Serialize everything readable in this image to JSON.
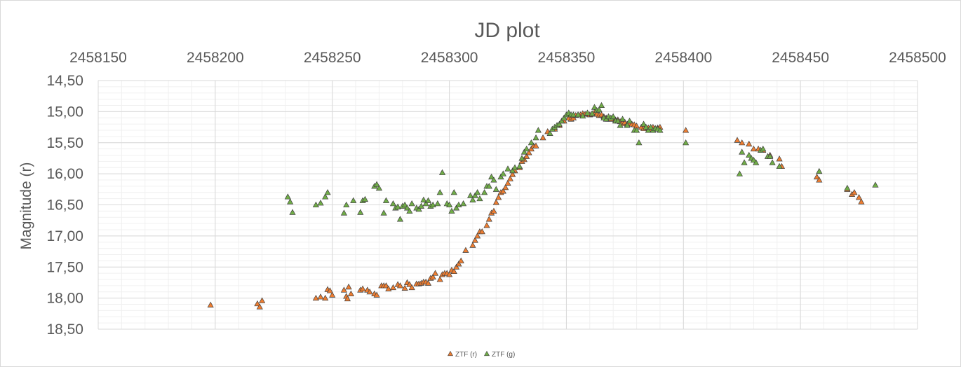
{
  "chart_data": {
    "type": "scatter",
    "title": "JD plot",
    "xlabel": "",
    "ylabel": "Magnitude (r)",
    "x_axis_position": "top",
    "y_reversed": true,
    "xlim": [
      2458150,
      2458500
    ],
    "ylim": [
      14.5,
      18.5
    ],
    "x_ticks": [
      "2458150",
      "2458200",
      "2458250",
      "2458300",
      "2458350",
      "2458400",
      "2458450",
      "2458500"
    ],
    "y_ticks": [
      "14,50",
      "15,00",
      "15,50",
      "16,00",
      "16,50",
      "17,00",
      "17,50",
      "18,00",
      "18,50"
    ],
    "x_tick_values": [
      2458150,
      2458200,
      2458250,
      2458300,
      2458350,
      2458400,
      2458450,
      2458500
    ],
    "y_tick_values": [
      14.5,
      15.0,
      15.5,
      16.0,
      16.5,
      17.0,
      17.5,
      18.0,
      18.5
    ],
    "grid": true,
    "legend_position": "bottom",
    "series": [
      {
        "name": "ZTF (r)",
        "color": "#ed7d31",
        "marker": "triangle",
        "points": [
          [
            2458198,
            18.11
          ],
          [
            2458218,
            18.09
          ],
          [
            2458219,
            18.14
          ],
          [
            2458220,
            18.04
          ],
          [
            2458243,
            18.0
          ],
          [
            2458245,
            17.98
          ],
          [
            2458247,
            18.0
          ],
          [
            2458248,
            17.86
          ],
          [
            2458249,
            17.88
          ],
          [
            2458250,
            17.95
          ],
          [
            2458255,
            17.87
          ],
          [
            2458256,
            17.97
          ],
          [
            2458256.5,
            18.01
          ],
          [
            2458257,
            17.82
          ],
          [
            2458258,
            17.93
          ],
          [
            2458262,
            17.87
          ],
          [
            2458263,
            17.85
          ],
          [
            2458265,
            17.87
          ],
          [
            2458266,
            17.9
          ],
          [
            2458268,
            17.93
          ],
          [
            2458269,
            17.95
          ],
          [
            2458271,
            17.8
          ],
          [
            2458272,
            17.8
          ],
          [
            2458273,
            17.8
          ],
          [
            2458274,
            17.85
          ],
          [
            2458276,
            17.83
          ],
          [
            2458278,
            17.78
          ],
          [
            2458279,
            17.8
          ],
          [
            2458281,
            17.84
          ],
          [
            2458282,
            17.75
          ],
          [
            2458283,
            17.78
          ],
          [
            2458284,
            17.83
          ],
          [
            2458286,
            17.77
          ],
          [
            2458287,
            17.77
          ],
          [
            2458288,
            17.76
          ],
          [
            2458289,
            17.74
          ],
          [
            2458290,
            17.74
          ],
          [
            2458291,
            17.76
          ],
          [
            2458292,
            17.68
          ],
          [
            2458293,
            17.66
          ],
          [
            2458294,
            17.6
          ],
          [
            2458296,
            17.7
          ],
          [
            2458297,
            17.62
          ],
          [
            2458298,
            17.6
          ],
          [
            2458299,
            17.6
          ],
          [
            2458300,
            17.62
          ],
          [
            2458301,
            17.55
          ],
          [
            2458302,
            17.57
          ],
          [
            2458303,
            17.5
          ],
          [
            2458304,
            17.45
          ],
          [
            2458305,
            17.4
          ],
          [
            2458307,
            17.23
          ],
          [
            2458310,
            17.15
          ],
          [
            2458311,
            17.07
          ],
          [
            2458312,
            17.0
          ],
          [
            2458313,
            16.93
          ],
          [
            2458314,
            16.93
          ],
          [
            2458316,
            16.83
          ],
          [
            2458317,
            16.73
          ],
          [
            2458318,
            16.63
          ],
          [
            2458319,
            16.6
          ],
          [
            2458320,
            16.46
          ],
          [
            2458321,
            16.38
          ],
          [
            2458322,
            16.3
          ],
          [
            2458323,
            16.28
          ],
          [
            2458324,
            16.22
          ],
          [
            2458325,
            16.15
          ],
          [
            2458326,
            16.08
          ],
          [
            2458327,
            16.01
          ],
          [
            2458328,
            15.95
          ],
          [
            2458330,
            15.9
          ],
          [
            2458331,
            15.8
          ],
          [
            2458332,
            15.77
          ],
          [
            2458333,
            15.72
          ],
          [
            2458334,
            15.66
          ],
          [
            2458335,
            15.6
          ],
          [
            2458336,
            15.55
          ],
          [
            2458337,
            15.55
          ],
          [
            2458340,
            15.42
          ],
          [
            2458342,
            15.32
          ],
          [
            2458345,
            15.28
          ],
          [
            2458347,
            15.22
          ],
          [
            2458349,
            15.15
          ],
          [
            2458351,
            15.1
          ],
          [
            2458352,
            15.12
          ],
          [
            2458353,
            15.1
          ],
          [
            2458354,
            15.06
          ],
          [
            2458355,
            15.05
          ],
          [
            2458356,
            15.05
          ],
          [
            2458357,
            15.03
          ],
          [
            2458358,
            15.04
          ],
          [
            2458359,
            15.03
          ],
          [
            2458360,
            15.05
          ],
          [
            2458361,
            15.04
          ],
          [
            2458362,
            15.01
          ],
          [
            2458363,
            15.04
          ],
          [
            2458364,
            15.06
          ],
          [
            2458365,
            15.05
          ],
          [
            2458366,
            15.08
          ],
          [
            2458367,
            15.1
          ],
          [
            2458368,
            15.12
          ],
          [
            2458369,
            15.12
          ],
          [
            2458370,
            15.1
          ],
          [
            2458371,
            15.13
          ],
          [
            2458372,
            15.13
          ],
          [
            2458373,
            15.16
          ],
          [
            2458374,
            15.19
          ],
          [
            2458375,
            15.17
          ],
          [
            2458376,
            15.2
          ],
          [
            2458377,
            15.18
          ],
          [
            2458378,
            15.2
          ],
          [
            2458379,
            15.21
          ],
          [
            2458380,
            15.23
          ],
          [
            2458382,
            15.25
          ],
          [
            2458383,
            15.27
          ],
          [
            2458384,
            15.25
          ],
          [
            2458385,
            15.26
          ],
          [
            2458386,
            15.28
          ],
          [
            2458387,
            15.25
          ],
          [
            2458388,
            15.27
          ],
          [
            2458389,
            15.26
          ],
          [
            2458390,
            15.25
          ],
          [
            2458401,
            15.3
          ],
          [
            2458423,
            15.46
          ],
          [
            2458425,
            15.5
          ],
          [
            2458428,
            15.52
          ],
          [
            2458430,
            15.6
          ],
          [
            2458432,
            15.6
          ],
          [
            2458434,
            15.62
          ],
          [
            2458437,
            15.7
          ],
          [
            2458441,
            15.76
          ],
          [
            2458442,
            15.88
          ],
          [
            2458457,
            16.05
          ],
          [
            2458458,
            16.1
          ],
          [
            2458470,
            16.25
          ],
          [
            2458472,
            16.33
          ],
          [
            2458473,
            16.3
          ],
          [
            2458475,
            16.38
          ],
          [
            2458476,
            16.45
          ]
        ]
      },
      {
        "name": "ZTF (g)",
        "color": "#70ad47",
        "marker": "triangle",
        "points": [
          [
            2458231,
            16.37
          ],
          [
            2458232,
            16.45
          ],
          [
            2458233,
            16.62
          ],
          [
            2458243,
            16.5
          ],
          [
            2458245,
            16.47
          ],
          [
            2458247,
            16.37
          ],
          [
            2458248,
            16.3
          ],
          [
            2458255,
            16.63
          ],
          [
            2458256,
            16.5
          ],
          [
            2458259,
            16.43
          ],
          [
            2458262,
            16.62
          ],
          [
            2458263,
            16.43
          ],
          [
            2458264,
            16.41
          ],
          [
            2458268,
            16.2
          ],
          [
            2458269,
            16.17
          ],
          [
            2458270,
            16.23
          ],
          [
            2458272,
            16.63
          ],
          [
            2458273,
            16.43
          ],
          [
            2458276,
            16.48
          ],
          [
            2458277,
            16.55
          ],
          [
            2458278,
            16.53
          ],
          [
            2458279,
            16.73
          ],
          [
            2458280,
            16.52
          ],
          [
            2458281,
            16.5
          ],
          [
            2458282,
            16.55
          ],
          [
            2458283,
            16.6
          ],
          [
            2458284,
            16.48
          ],
          [
            2458286,
            16.55
          ],
          [
            2458287,
            16.57
          ],
          [
            2458288,
            16.52
          ],
          [
            2458289,
            16.42
          ],
          [
            2458290,
            16.48
          ],
          [
            2458291,
            16.43
          ],
          [
            2458292,
            16.52
          ],
          [
            2458293,
            16.5
          ],
          [
            2458295,
            16.48
          ],
          [
            2458296,
            16.3
          ],
          [
            2458297,
            15.98
          ],
          [
            2458299,
            16.48
          ],
          [
            2458300,
            16.5
          ],
          [
            2458301,
            16.6
          ],
          [
            2458302,
            16.3
          ],
          [
            2458303,
            16.55
          ],
          [
            2458304,
            16.5
          ],
          [
            2458306,
            16.48
          ],
          [
            2458309,
            16.35
          ],
          [
            2458310,
            16.42
          ],
          [
            2458311,
            16.35
          ],
          [
            2458312,
            16.3
          ],
          [
            2458313,
            16.4
          ],
          [
            2458315,
            16.3
          ],
          [
            2458316,
            16.2
          ],
          [
            2458317,
            16.2
          ],
          [
            2458318,
            16.05
          ],
          [
            2458319,
            16.1
          ],
          [
            2458320,
            16.25
          ],
          [
            2458322,
            16.05
          ],
          [
            2458323,
            16.0
          ],
          [
            2458325,
            15.92
          ],
          [
            2458327,
            15.95
          ],
          [
            2458328,
            15.9
          ],
          [
            2458330,
            15.88
          ],
          [
            2458331,
            15.75
          ],
          [
            2458332,
            15.65
          ],
          [
            2458333,
            15.6
          ],
          [
            2458335,
            15.5
          ],
          [
            2458337,
            15.42
          ],
          [
            2458338,
            15.3
          ],
          [
            2458343,
            15.35
          ],
          [
            2458344,
            15.28
          ],
          [
            2458345,
            15.25
          ],
          [
            2458346,
            15.22
          ],
          [
            2458347,
            15.2
          ],
          [
            2458348,
            15.15
          ],
          [
            2458349,
            15.1
          ],
          [
            2458350,
            15.05
          ],
          [
            2458351,
            15.02
          ],
          [
            2458352,
            15.05
          ],
          [
            2458353,
            15.05
          ],
          [
            2458355,
            15.05
          ],
          [
            2458357,
            15.07
          ],
          [
            2458359,
            15.02
          ],
          [
            2458361,
            15.03
          ],
          [
            2458362,
            14.93
          ],
          [
            2458363,
            14.98
          ],
          [
            2458364,
            14.97
          ],
          [
            2458365,
            14.9
          ],
          [
            2458366,
            15.1
          ],
          [
            2458367,
            15.12
          ],
          [
            2458368,
            15.08
          ],
          [
            2458369,
            15.1
          ],
          [
            2458370,
            15.08
          ],
          [
            2458371,
            15.15
          ],
          [
            2458372,
            15.15
          ],
          [
            2458373,
            15.22
          ],
          [
            2458374,
            15.12
          ],
          [
            2458376,
            15.22
          ],
          [
            2458377,
            15.15
          ],
          [
            2458379,
            15.3
          ],
          [
            2458380,
            15.3
          ],
          [
            2458381,
            15.5
          ],
          [
            2458383,
            15.2
          ],
          [
            2458384,
            15.25
          ],
          [
            2458385,
            15.3
          ],
          [
            2458386,
            15.25
          ],
          [
            2458387,
            15.3
          ],
          [
            2458388,
            15.27
          ],
          [
            2458389,
            15.28
          ],
          [
            2458390,
            15.3
          ],
          [
            2458401,
            15.5
          ],
          [
            2458424,
            16.0
          ],
          [
            2458425,
            15.65
          ],
          [
            2458426,
            15.82
          ],
          [
            2458428,
            15.7
          ],
          [
            2458429,
            15.75
          ],
          [
            2458430,
            15.78
          ],
          [
            2458431,
            15.82
          ],
          [
            2458433,
            15.62
          ],
          [
            2458434,
            15.6
          ],
          [
            2458436,
            15.72
          ],
          [
            2458437,
            15.72
          ],
          [
            2458438,
            15.82
          ],
          [
            2458441,
            15.88
          ],
          [
            2458458,
            15.96
          ],
          [
            2458470,
            16.23
          ],
          [
            2458482,
            16.18
          ]
        ]
      }
    ]
  }
}
